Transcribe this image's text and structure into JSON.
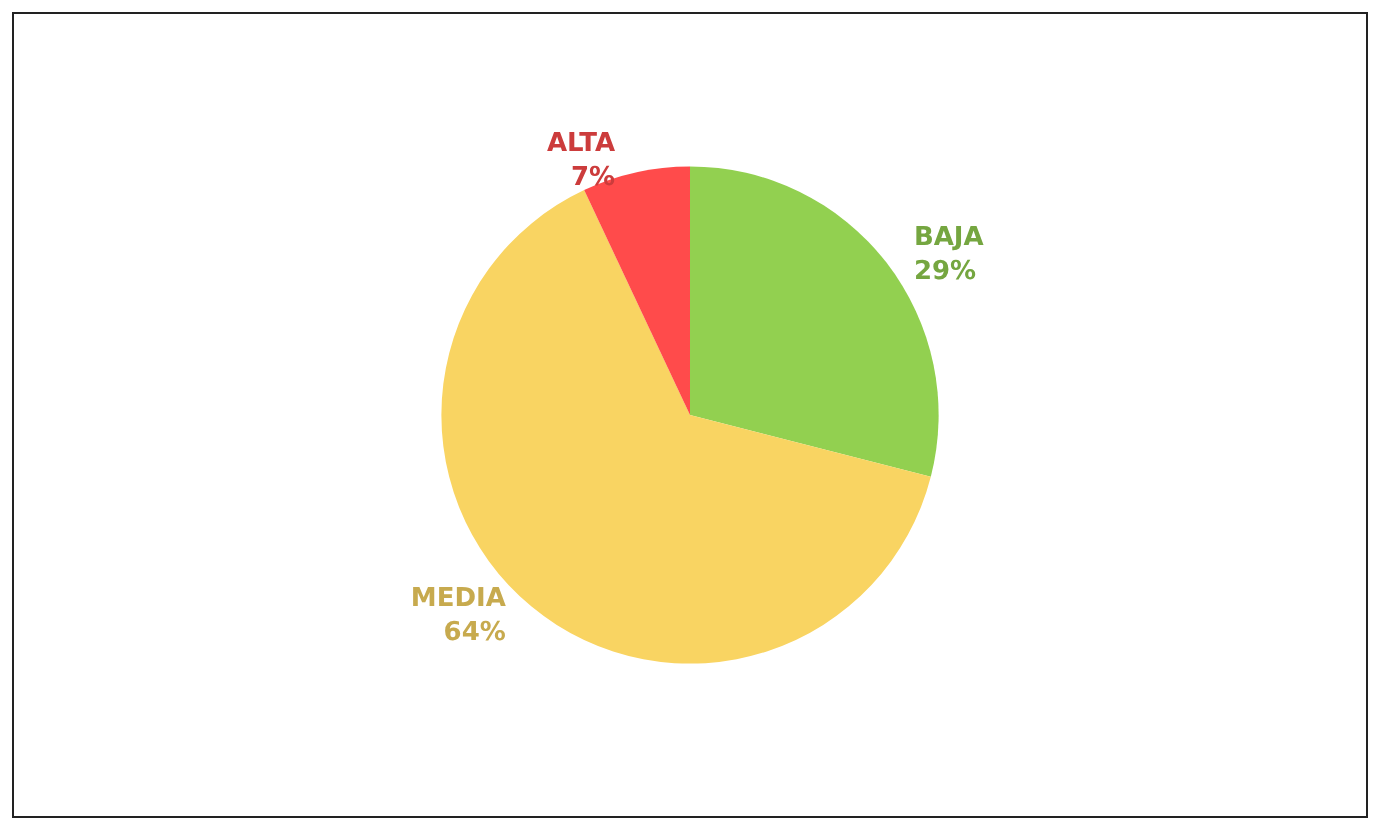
{
  "chart_data": {
    "type": "pie",
    "categories": [
      "BAJA",
      "MEDIA",
      "ALTA"
    ],
    "values": [
      29,
      64,
      7
    ],
    "value_labels": [
      "29%",
      "64%",
      "7%"
    ],
    "colors": [
      "#92d050",
      "#f9d462",
      "#ff4b4b"
    ],
    "legend": false
  }
}
